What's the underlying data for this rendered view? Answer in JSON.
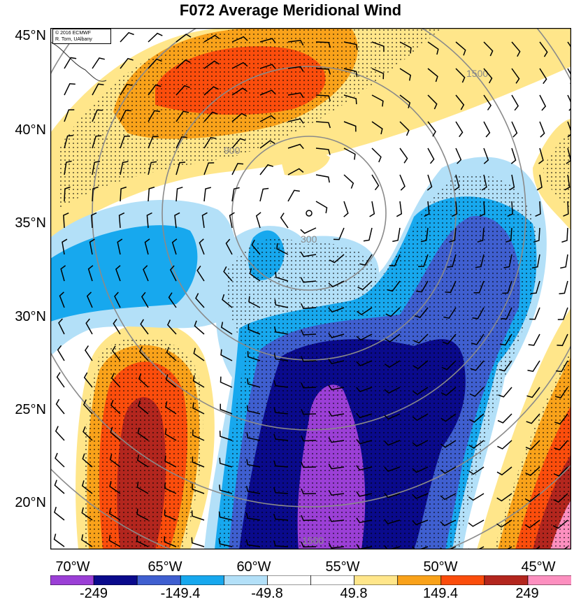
{
  "title": "F072 Average Meridional Wind",
  "credit": [
    "© 2016 ECMWF",
    "R. Torn, UAlbany"
  ],
  "lat_labels": [
    "45°N",
    "40°N",
    "35°N",
    "30°N",
    "25°N",
    "20°N"
  ],
  "lon_labels": [
    "70°W",
    "65°W",
    "60°W",
    "55°W",
    "50°W",
    "45°W"
  ],
  "colorbar": {
    "labels": [
      "-249",
      "-149.4",
      "-49.8",
      "49.8",
      "149.4",
      "249"
    ],
    "colors": [
      "#9b3fd6",
      "#0a0a8c",
      "#3f5fd0",
      "#17a8ee",
      "#b3e0f8",
      "#ffffff",
      "#ffffff",
      "#ffe68a",
      "#f9a21a",
      "#fb4d0c",
      "#b3261e",
      "#fc8fbf"
    ]
  },
  "contours": {
    "labels": [
      "300",
      "900",
      "1500"
    ],
    "color": "#8a8a8a"
  }
}
